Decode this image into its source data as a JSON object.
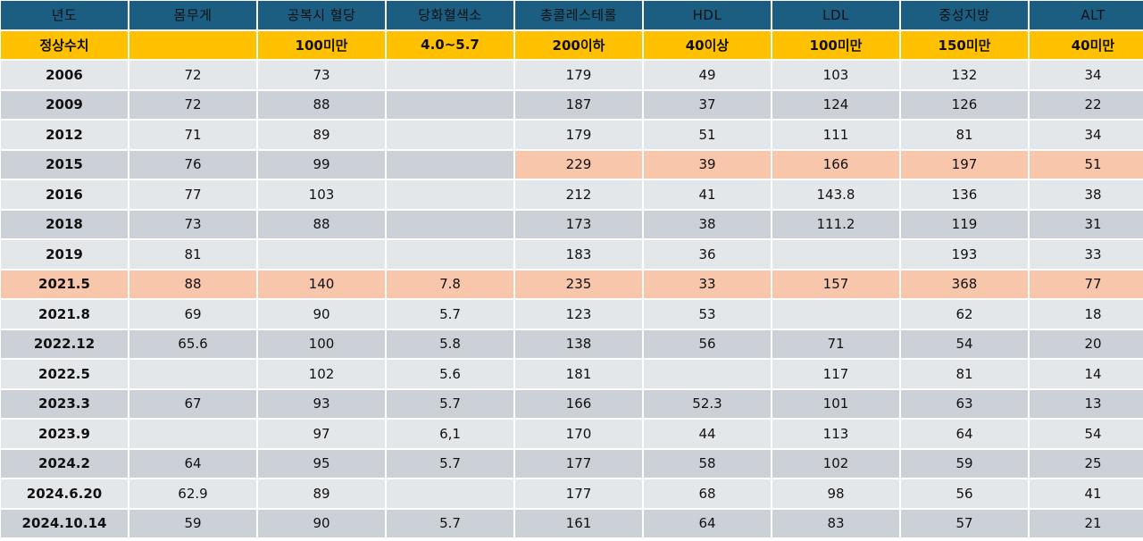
{
  "table": {
    "headers": [
      "년도",
      "몸무게",
      "공복시 혈당",
      "당화혈색소",
      "총콜레스테롤",
      "HDL",
      "LDL",
      "중성지방",
      "ALT"
    ],
    "normal_range": [
      "정상수치",
      "",
      "100미만",
      "4.0~5.7",
      "200이하",
      "40이상",
      "100미만",
      "150미만",
      "40미만"
    ],
    "rows": [
      {
        "cells": [
          "2006",
          "72",
          "73",
          "",
          "179",
          "49",
          "103",
          "132",
          "34"
        ],
        "highlight": []
      },
      {
        "cells": [
          "2009",
          "72",
          "88",
          "",
          "187",
          "37",
          "124",
          "126",
          "22"
        ],
        "highlight": []
      },
      {
        "cells": [
          "2012",
          "71",
          "89",
          "",
          "179",
          "51",
          "111",
          "81",
          "34"
        ],
        "highlight": []
      },
      {
        "cells": [
          "2015",
          "76",
          "99",
          "",
          "229",
          "39",
          "166",
          "197",
          "51"
        ],
        "highlight": [
          4,
          5,
          6,
          7,
          8
        ]
      },
      {
        "cells": [
          "2016",
          "77",
          "103",
          "",
          "212",
          "41",
          "143.8",
          "136",
          "38"
        ],
        "highlight": []
      },
      {
        "cells": [
          "2018",
          "73",
          "88",
          "",
          "173",
          "38",
          "111.2",
          "119",
          "31"
        ],
        "highlight": []
      },
      {
        "cells": [
          "2019",
          "81",
          "",
          "",
          "183",
          "36",
          "",
          "193",
          "33"
        ],
        "highlight": []
      },
      {
        "cells": [
          "2021.5",
          "88",
          "140",
          "7.8",
          "235",
          "33",
          "157",
          "368",
          "77"
        ],
        "highlight": [
          0,
          1,
          2,
          3,
          4,
          5,
          6,
          7,
          8
        ]
      },
      {
        "cells": [
          "2021.8",
          "69",
          "90",
          "5.7",
          "123",
          "53",
          "",
          "62",
          "18"
        ],
        "highlight": []
      },
      {
        "cells": [
          "2022.12",
          "65.6",
          "100",
          "5.8",
          "138",
          "56",
          "71",
          "54",
          "20"
        ],
        "highlight": []
      },
      {
        "cells": [
          "2022.5",
          "",
          "102",
          "5.6",
          "181",
          "",
          "117",
          "81",
          "14"
        ],
        "highlight": []
      },
      {
        "cells": [
          "2023.3",
          "67",
          "93",
          "5.7",
          "166",
          "52.3",
          "101",
          "63",
          "13"
        ],
        "highlight": []
      },
      {
        "cells": [
          "2023.9",
          "",
          "97",
          "6,1",
          "170",
          "44",
          "113",
          "64",
          "54"
        ],
        "highlight": []
      },
      {
        "cells": [
          "2024.2",
          "64",
          "95",
          "5.7",
          "177",
          "58",
          "102",
          "59",
          "25"
        ],
        "highlight": []
      },
      {
        "cells": [
          "2024.6.20",
          "62.9",
          "89",
          "",
          "177",
          "68",
          "98",
          "56",
          "41"
        ],
        "highlight": []
      },
      {
        "cells": [
          "2024.10.14",
          "59",
          "90",
          "5.7",
          "161",
          "64",
          "83",
          "57",
          "21"
        ],
        "highlight": []
      }
    ]
  },
  "colors": {
    "header_bg": "#1b5e82",
    "header_text": "#ffffff",
    "normal_row_bg": "#ffc000",
    "row_light_bg": "#e4e7ea",
    "row_dark_bg": "#ccd1d8",
    "highlight_bg": "#f7c6ab"
  }
}
